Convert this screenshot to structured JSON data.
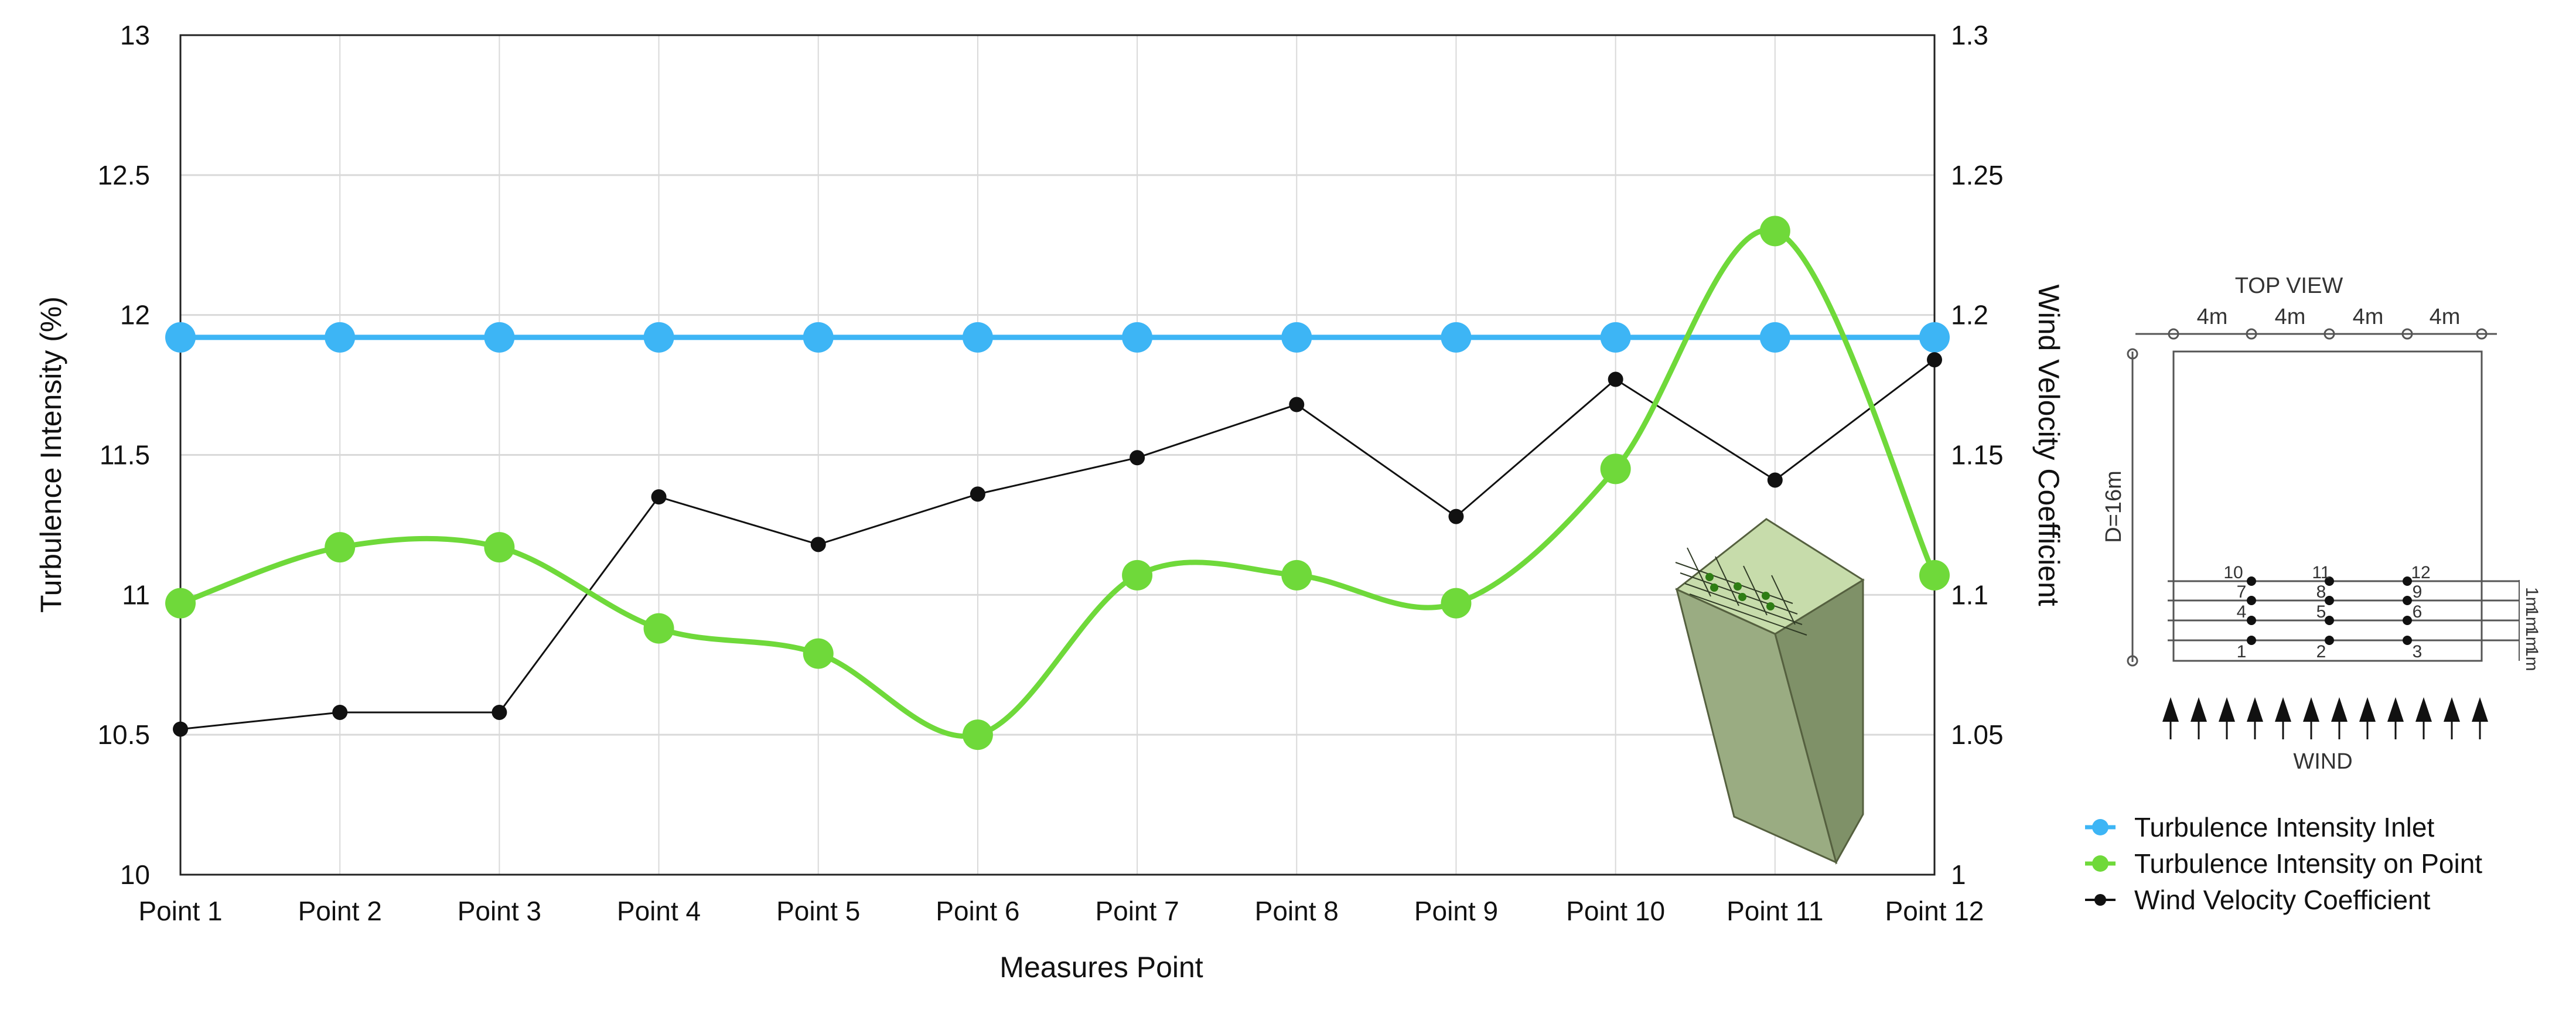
{
  "chart_data": {
    "type": "line",
    "categories": [
      "Point 1",
      "Point 2",
      "Point 3",
      "Point 4",
      "Point 5",
      "Point 6",
      "Point 7",
      "Point 8",
      "Point 9",
      "Point 10",
      "Point 11",
      "Point 12"
    ],
    "xlabel": "Measures Point",
    "ylabel_left": "Turbulence Intensity (%)",
    "ylabel_right": "Wind Velocity Coefficient",
    "ylim_left": [
      10,
      13
    ],
    "ylim_right": [
      1,
      1.3
    ],
    "yticks_left": [
      "10",
      "10.5",
      "11",
      "11.5",
      "12",
      "12.5",
      "13"
    ],
    "yticks_right": [
      "1",
      "1.05",
      "1.1",
      "1.15",
      "1.2",
      "1.25",
      "1.3"
    ],
    "grid": true,
    "legend_position": "bottom-right",
    "series": [
      {
        "name": "Turbulence Intensity Inlet",
        "axis": "left",
        "color": "#3DB5F5",
        "smooth": false,
        "values": [
          11.92,
          11.92,
          11.92,
          11.92,
          11.92,
          11.92,
          11.92,
          11.92,
          11.92,
          11.92,
          11.92,
          11.92
        ]
      },
      {
        "name": "Turbulence Intensity on Point",
        "axis": "left",
        "color": "#6FD93A",
        "smooth": true,
        "values": [
          10.97,
          11.17,
          11.17,
          10.88,
          10.79,
          10.5,
          11.07,
          11.07,
          10.97,
          11.45,
          12.3,
          11.07
        ]
      },
      {
        "name": "Wind Velocity Coefficient",
        "axis": "right",
        "color": "#111111",
        "smooth": false,
        "values": [
          1.052,
          1.058,
          1.058,
          1.135,
          1.118,
          1.136,
          1.149,
          1.168,
          1.128,
          1.177,
          1.141,
          1.184
        ]
      }
    ]
  },
  "inset_diagram": {
    "title": "TOP VIEW",
    "spacing_labels": [
      "4m",
      "4m",
      "4m",
      "4m"
    ],
    "depth_label": "D=16m",
    "point_numbers": [
      "10",
      "11",
      "12",
      "7",
      "8",
      "9",
      "4",
      "5",
      "6",
      "1",
      "2",
      "3"
    ],
    "row_spacing_labels": [
      "1m",
      "1m",
      "1m",
      "1m"
    ],
    "wind_label": "WIND"
  },
  "colors": {
    "grid": "#d9d9d9",
    "axis": "#222222",
    "building_front": "#9aac82",
    "building_side": "#7f9168",
    "building_top": "#c7dcab"
  }
}
